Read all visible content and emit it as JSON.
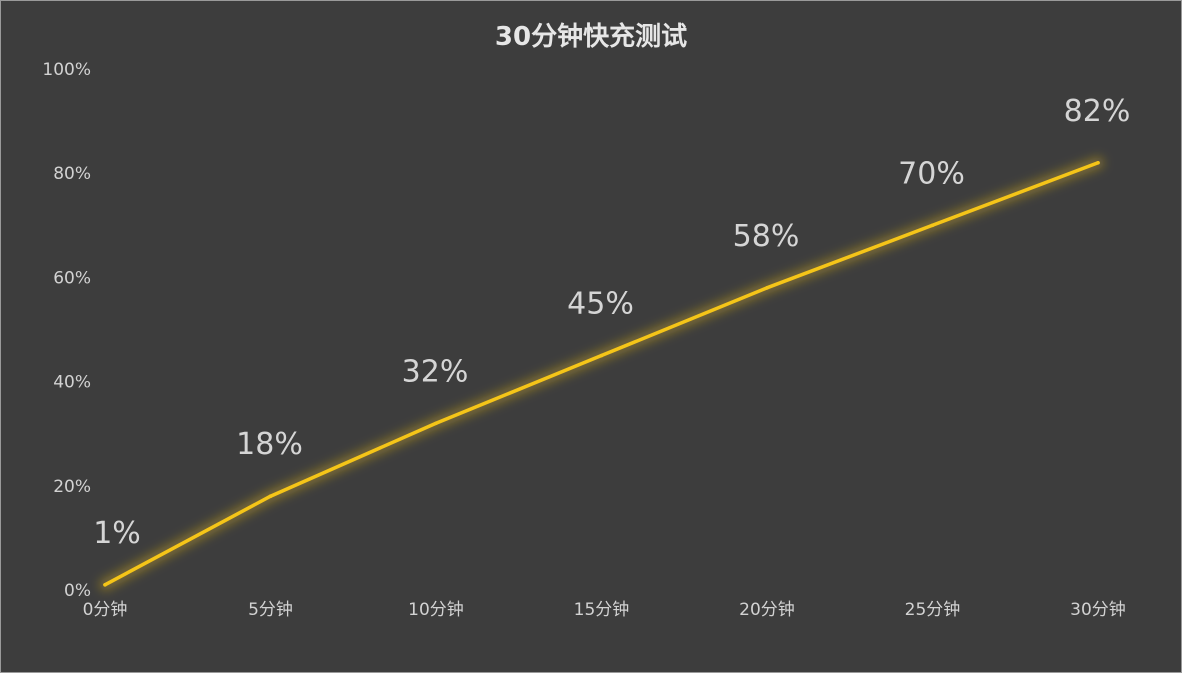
{
  "chart_data": {
    "type": "line",
    "title": "30分钟快充测试",
    "xlabel": "",
    "ylabel": "",
    "categories": [
      "0分钟",
      "5分钟",
      "10分钟",
      "15分钟",
      "20分钟",
      "25分钟",
      "30分钟"
    ],
    "series": [
      {
        "values": [
          1,
          18,
          32,
          45,
          58,
          70,
          82
        ],
        "labels": [
          "1%",
          "18%",
          "32%",
          "45%",
          "58%",
          "70%",
          "82%"
        ],
        "color": "#f5c518"
      }
    ],
    "ylim": [
      0,
      100
    ],
    "yticks": [
      "0%",
      "20%",
      "40%",
      "60%",
      "80%",
      "100%"
    ],
    "grid": false,
    "legend": "none",
    "background": "#3d3d3d"
  }
}
